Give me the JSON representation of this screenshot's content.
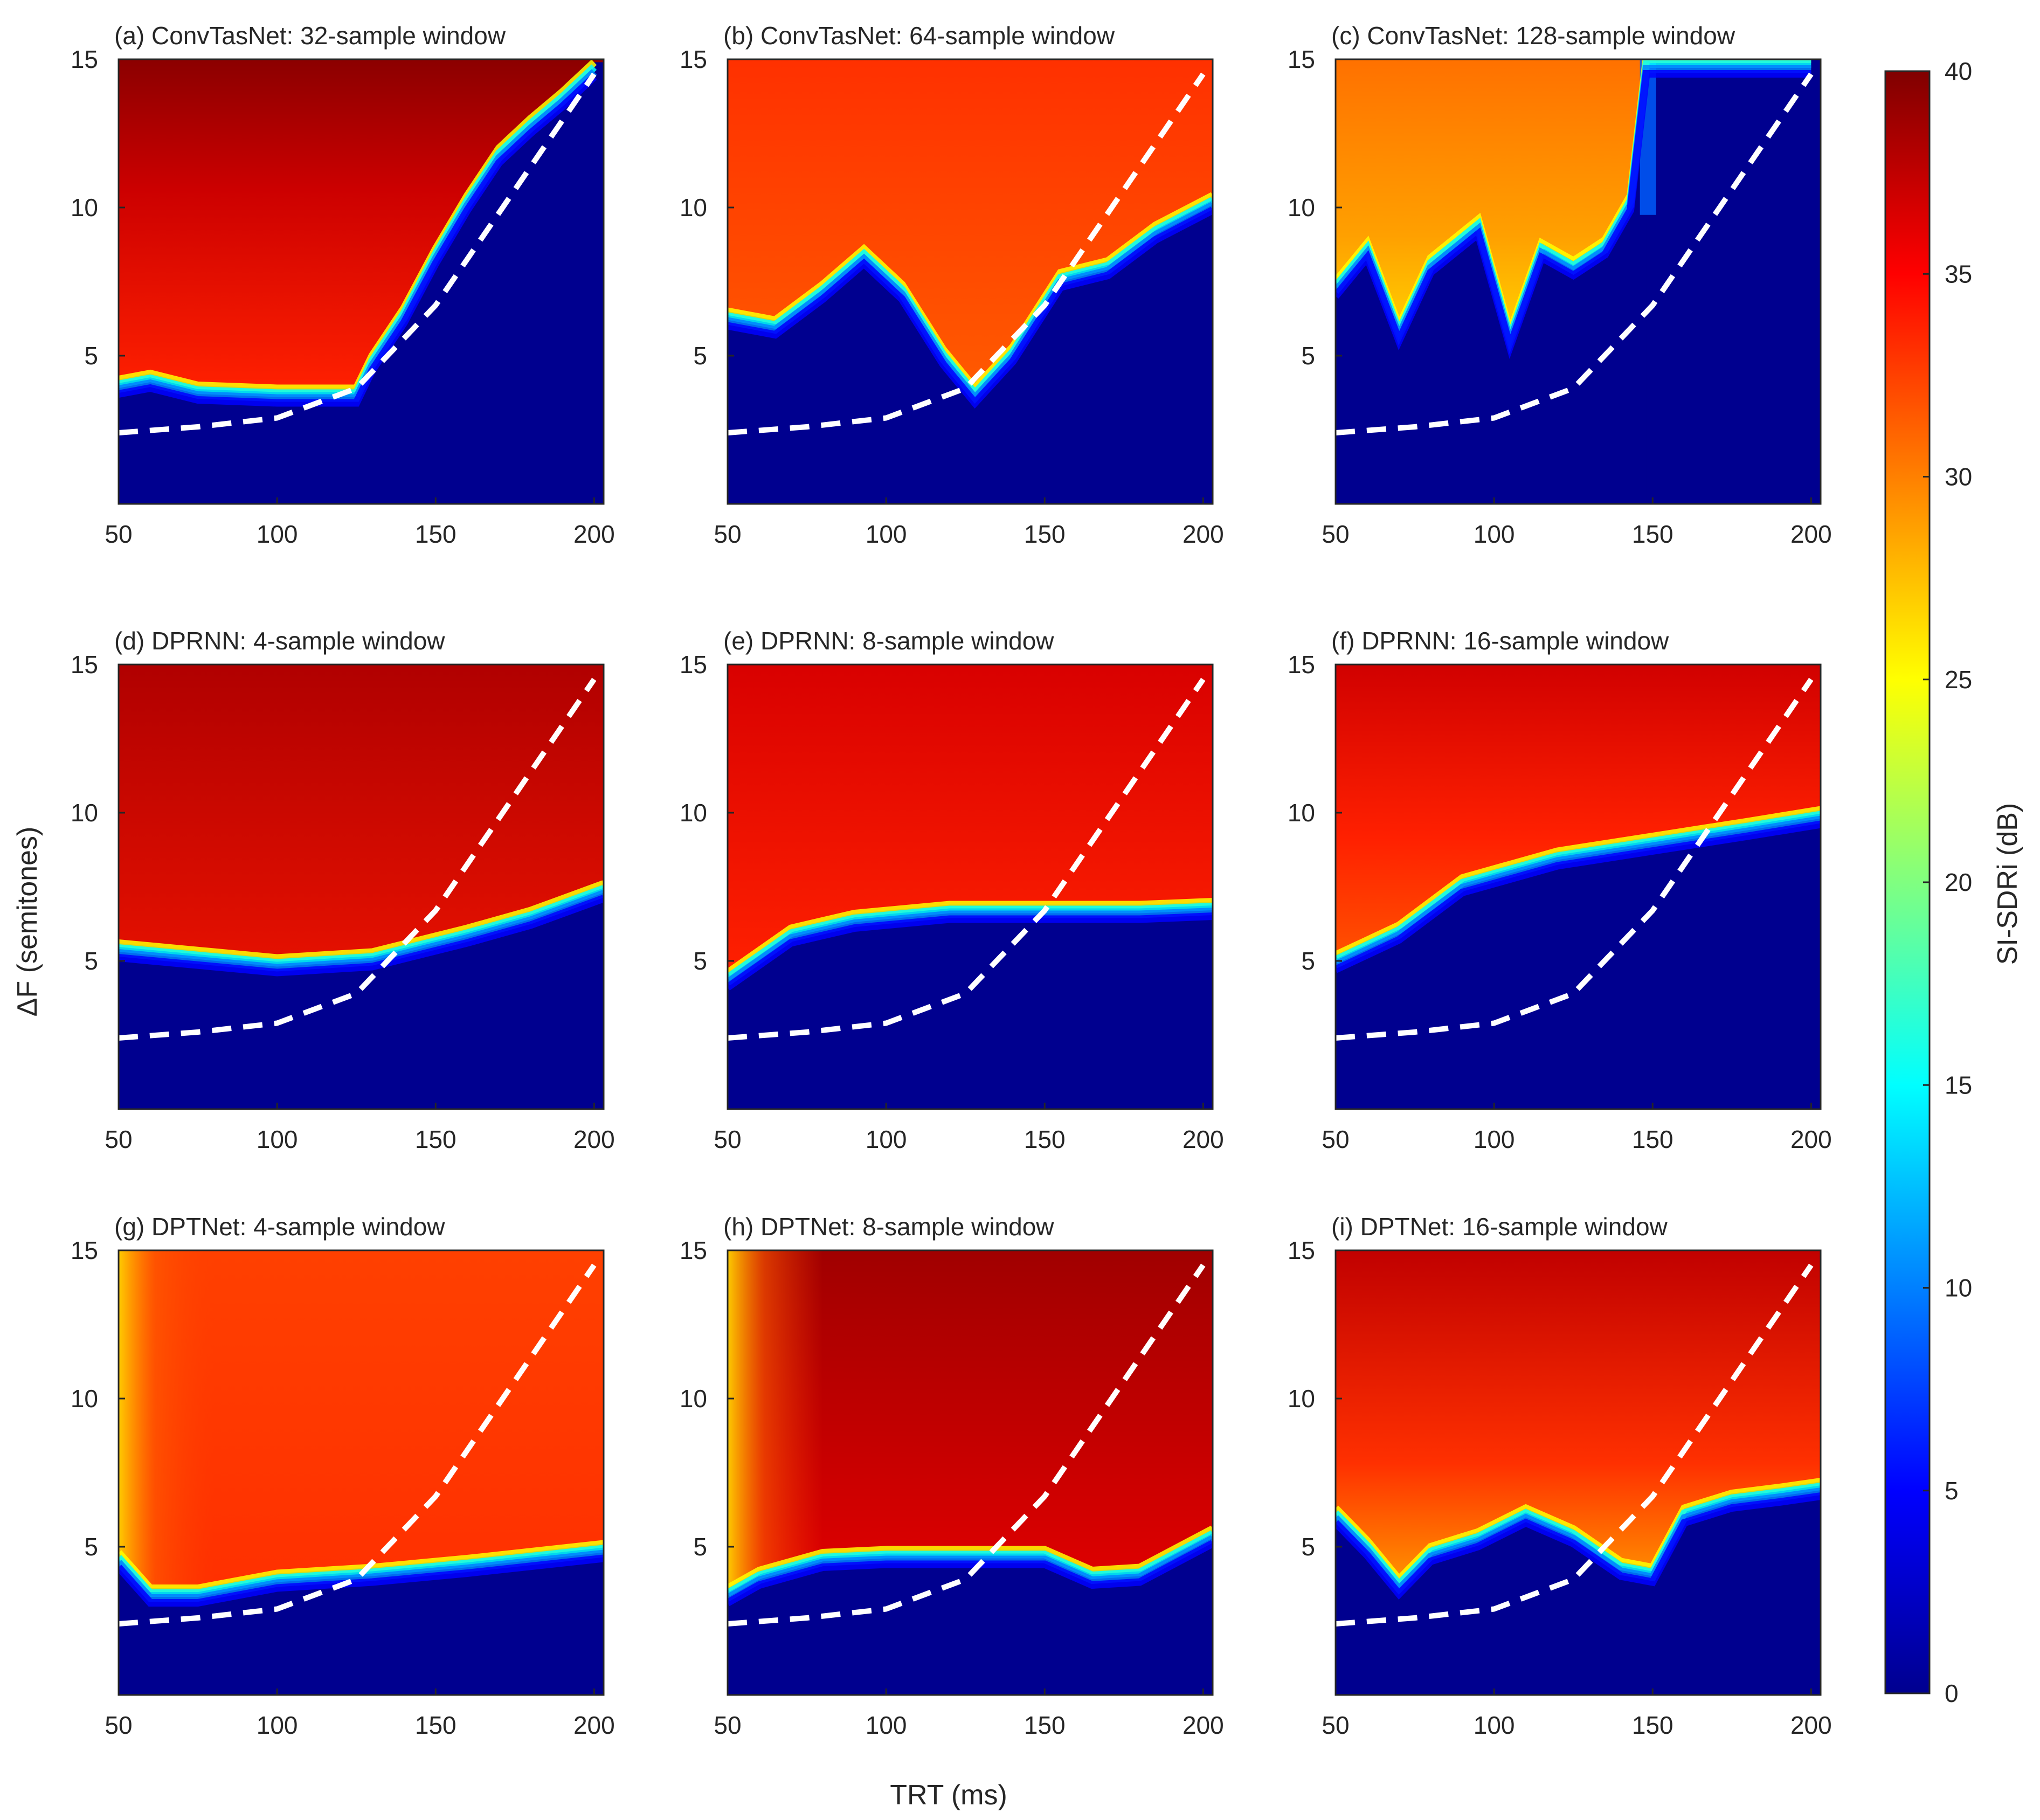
{
  "chart_data": {
    "type": "heatmap",
    "shared_xlabel": "TRT (ms)",
    "shared_ylabel": "ΔF (semitones)",
    "x_ticks": [
      50,
      100,
      150,
      200
    ],
    "y_ticks": [
      5,
      10,
      15
    ],
    "xlim": [
      50,
      203
    ],
    "ylim": [
      0,
      15
    ],
    "colorbar": {
      "label": "SI-SDRi (dB)",
      "range": [
        0,
        40
      ],
      "ticks": [
        0,
        5,
        10,
        15,
        20,
        25,
        30,
        35,
        40
      ],
      "colormap": "jet"
    },
    "threshold_curve": {
      "style": "white dashed",
      "x": [
        50,
        75,
        100,
        125,
        150,
        175,
        200
      ],
      "y": [
        2.4,
        2.6,
        2.9,
        3.9,
        6.7,
        10.6,
        14.5
      ]
    },
    "panels": [
      {
        "id": "a",
        "title": "(a) ConvTasNet: 32-sample window",
        "model": "ConvTasNet",
        "window": 32,
        "boundary_x": [
          50,
          60,
          75,
          100,
          125,
          130,
          140,
          150,
          160,
          170,
          180,
          190,
          200
        ],
        "boundary_y": [
          4.2,
          4.4,
          4.0,
          3.9,
          3.9,
          5.0,
          6.6,
          8.6,
          10.4,
          12.0,
          13.0,
          13.9,
          14.9
        ],
        "top_fill": "dark red (~40 dB) above 11 semitones, red (~35 dB) below"
      },
      {
        "id": "b",
        "title": "(b) ConvTasNet: 64-sample window",
        "model": "ConvTasNet",
        "window": 64,
        "boundary_x": [
          50,
          65,
          80,
          93,
          105,
          118,
          128,
          140,
          155,
          170,
          185,
          203
        ],
        "boundary_y": [
          6.5,
          6.2,
          7.4,
          8.6,
          7.4,
          5.2,
          3.9,
          5.3,
          7.8,
          8.2,
          9.4,
          10.4
        ],
        "top_fill": "red-orange (~33 dB)"
      },
      {
        "id": "c",
        "title": "(c) ConvTasNet: 128-sample window",
        "model": "ConvTasNet",
        "window": 128,
        "boundary_x": [
          50,
          60,
          70,
          80,
          95,
          105,
          115,
          125,
          135,
          143,
          148,
          200
        ],
        "boundary_y": [
          7.5,
          8.8,
          6.0,
          8.3,
          9.6,
          5.8,
          8.8,
          8.2,
          8.9,
          10.4,
          15.0,
          15.0
        ],
        "top_fill": "orange (~30 dB) with yellow lower band"
      },
      {
        "id": "d",
        "title": "(d) DPRNN: 4-sample window",
        "model": "DPRNN",
        "window": 4,
        "boundary_x": [
          50,
          80,
          100,
          130,
          160,
          180,
          203
        ],
        "boundary_y": [
          5.6,
          5.3,
          5.1,
          5.3,
          6.1,
          6.7,
          7.6
        ],
        "top_fill": "red (~37 dB)"
      },
      {
        "id": "e",
        "title": "(e) DPRNN: 8-sample window",
        "model": "DPRNN",
        "window": 8,
        "boundary_x": [
          50,
          70,
          90,
          120,
          150,
          180,
          203
        ],
        "boundary_y": [
          4.6,
          6.1,
          6.6,
          6.9,
          6.9,
          6.9,
          7.0
        ],
        "top_fill": "red (~36 dB)"
      },
      {
        "id": "f",
        "title": "(f) DPRNN: 16-sample window",
        "model": "DPRNN",
        "window": 16,
        "boundary_x": [
          50,
          70,
          90,
          120,
          150,
          180,
          203
        ],
        "boundary_y": [
          5.2,
          6.2,
          7.8,
          8.7,
          9.2,
          9.7,
          10.1
        ],
        "top_fill": "red (~35 dB), cyan transition band"
      },
      {
        "id": "g",
        "title": "(g) DPTNet: 4-sample window",
        "model": "DPTNet",
        "window": 4,
        "boundary_x": [
          50,
          60,
          75,
          100,
          130,
          160,
          203
        ],
        "boundary_y": [
          4.8,
          3.6,
          3.6,
          4.1,
          4.3,
          4.6,
          5.1
        ],
        "top_fill": "red-orange (~33 dB), yellow near x=50"
      },
      {
        "id": "h",
        "title": "(h) DPTNet: 8-sample window",
        "model": "DPTNet",
        "window": 8,
        "boundary_x": [
          50,
          60,
          80,
          100,
          130,
          150,
          165,
          180,
          203
        ],
        "boundary_y": [
          3.6,
          4.2,
          4.8,
          4.9,
          4.9,
          4.9,
          4.2,
          4.3,
          5.6
        ],
        "top_fill": "dark red (~38 dB), yellow near x=50"
      },
      {
        "id": "i",
        "title": "(i) DPTNet: 16-sample window",
        "model": "DPTNet",
        "window": 16,
        "boundary_x": [
          50,
          60,
          70,
          80,
          95,
          110,
          125,
          140,
          150,
          160,
          175,
          190,
          203
        ],
        "boundary_y": [
          6.3,
          5.2,
          3.9,
          5.0,
          5.5,
          6.3,
          5.6,
          4.5,
          4.3,
          6.3,
          6.8,
          7.0,
          7.2
        ],
        "top_fill": "red (~36 dB), orange middle band"
      }
    ]
  }
}
